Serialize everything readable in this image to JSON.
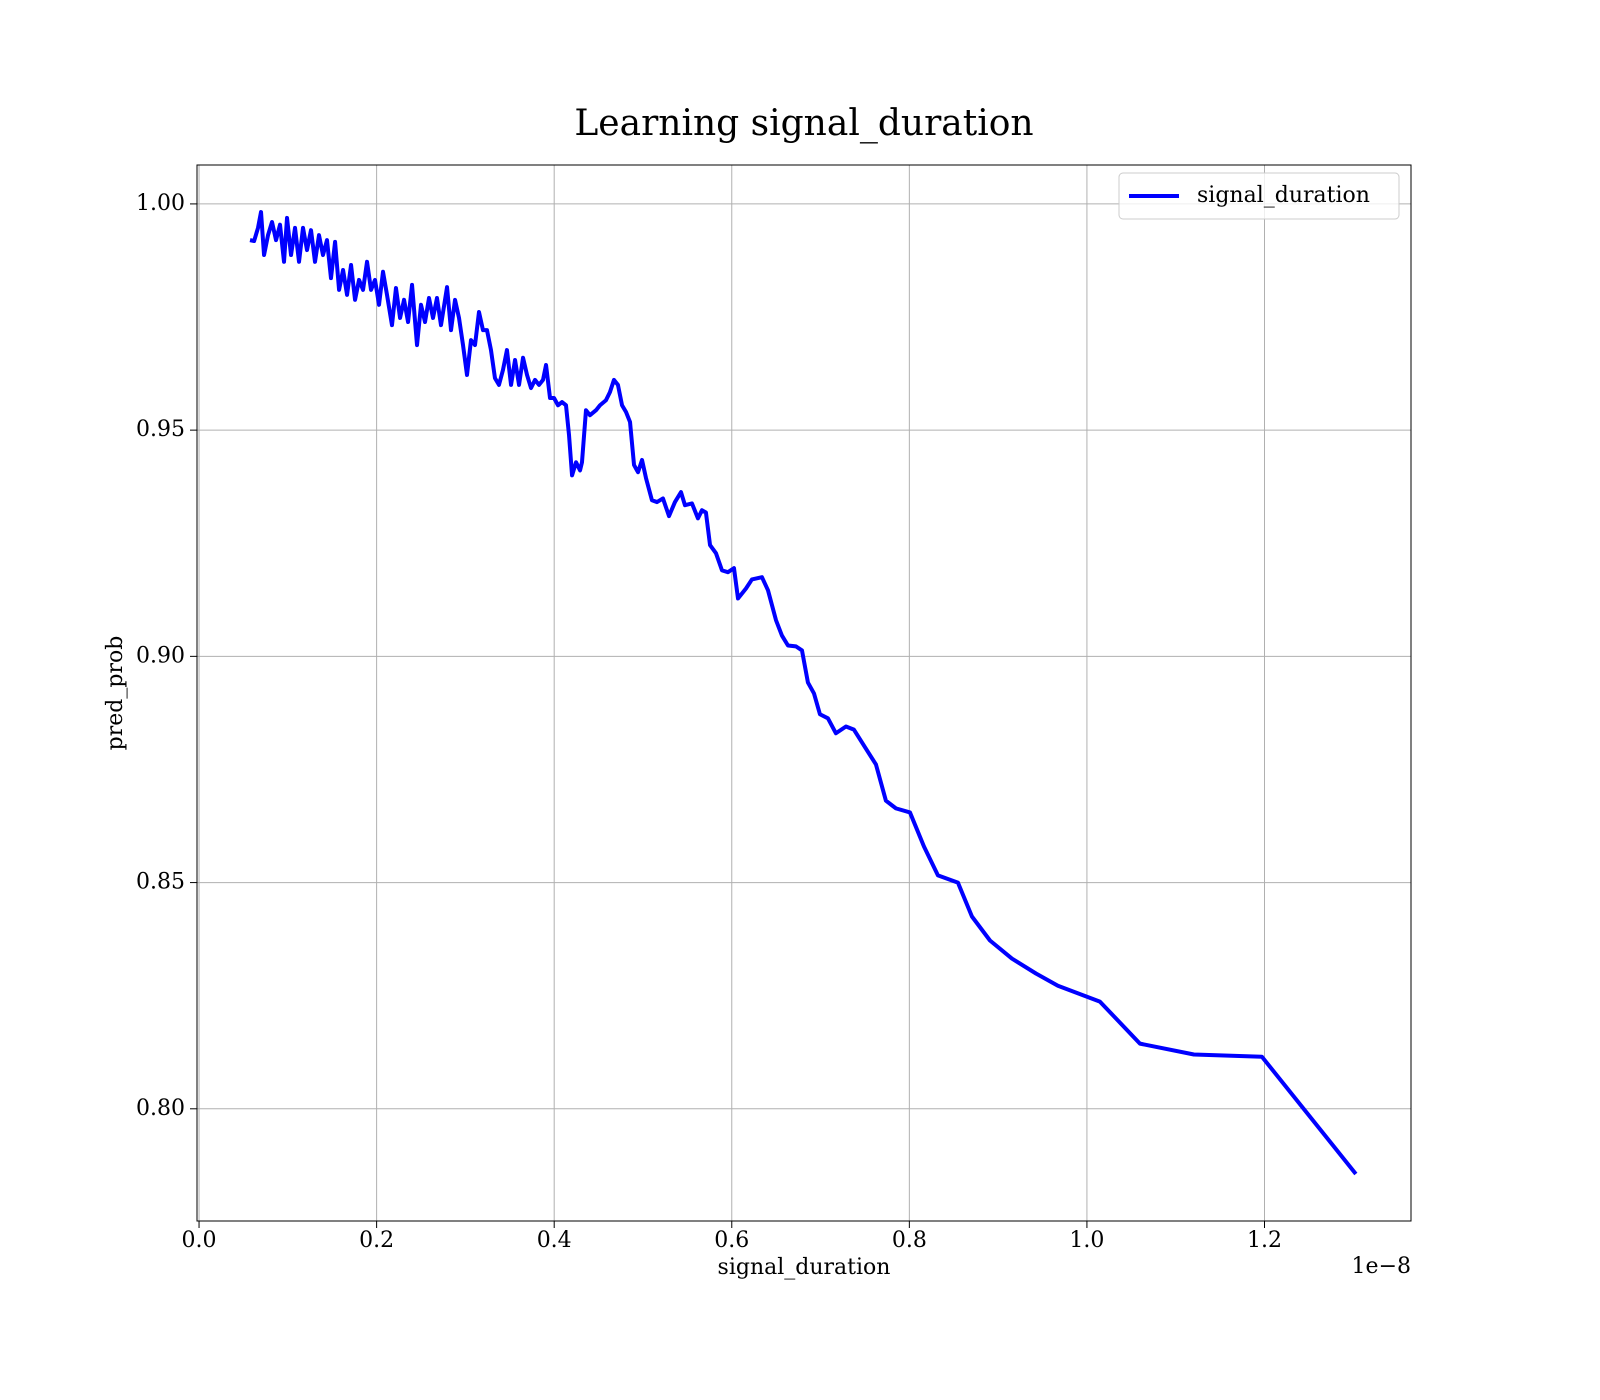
{
  "chart_data": {
    "type": "line",
    "title": "Learning signal_duration",
    "x_label": "signal_duration",
    "y_label": "pred_prob",
    "x_offset_text": "1e−8",
    "x": [
      0.0574,
      0.062,
      0.0664,
      0.0698,
      0.0732,
      0.0777,
      0.0822,
      0.0867,
      0.0912,
      0.0957,
      0.0991,
      0.1036,
      0.1081,
      0.1126,
      0.1171,
      0.1216,
      0.1261,
      0.1306,
      0.1351,
      0.1396,
      0.1441,
      0.1486,
      0.1532,
      0.1577,
      0.1622,
      0.1667,
      0.1712,
      0.1757,
      0.1802,
      0.1847,
      0.1892,
      0.1937,
      0.1982,
      0.2027,
      0.2072,
      0.2117,
      0.2173,
      0.2218,
      0.2264,
      0.2309,
      0.2354,
      0.2399,
      0.2455,
      0.25,
      0.2545,
      0.259,
      0.2635,
      0.268,
      0.2725,
      0.2793,
      0.2838,
      0.2883,
      0.2928,
      0.2973,
      0.3018,
      0.3063,
      0.3108,
      0.3153,
      0.3198,
      0.3243,
      0.3288,
      0.3333,
      0.3378,
      0.3423,
      0.3468,
      0.3514,
      0.3559,
      0.3604,
      0.3649,
      0.3694,
      0.3739,
      0.3784,
      0.3829,
      0.3874,
      0.3908,
      0.3953,
      0.3998,
      0.4043,
      0.4088,
      0.4133,
      0.4167,
      0.4201,
      0.4246,
      0.4291,
      0.4313,
      0.4358,
      0.4403,
      0.4471,
      0.4516,
      0.4583,
      0.4628,
      0.4673,
      0.4718,
      0.4764,
      0.4809,
      0.4854,
      0.4899,
      0.4944,
      0.4989,
      0.5034,
      0.5101,
      0.5158,
      0.5225,
      0.5293,
      0.536,
      0.5428,
      0.5473,
      0.5552,
      0.5619,
      0.5664,
      0.5709,
      0.5755,
      0.5822,
      0.589,
      0.5957,
      0.6025,
      0.607,
      0.616,
      0.6227,
      0.634,
      0.6408,
      0.6498,
      0.6565,
      0.6633,
      0.6723,
      0.6791,
      0.6858,
      0.6926,
      0.6993,
      0.7083,
      0.7173,
      0.7286,
      0.7376,
      0.7511,
      0.7624,
      0.7736,
      0.7849,
      0.8007,
      0.8164,
      0.8322,
      0.8547,
      0.8705,
      0.8908,
      0.9155,
      0.9426,
      0.9673,
      1.0146,
      1.0597,
      1.1205,
      1.1971,
      1.3029
    ],
    "series": [
      {
        "name": "signal_duration",
        "color": "#0000ff",
        "values": [
          0.992,
          0.9918,
          0.9947,
          0.9982,
          0.9887,
          0.9931,
          0.996,
          0.992,
          0.9954,
          0.9872,
          0.9969,
          0.9887,
          0.9947,
          0.9872,
          0.9947,
          0.9898,
          0.9942,
          0.9872,
          0.9931,
          0.9887,
          0.992,
          0.9836,
          0.9916,
          0.981,
          0.9854,
          0.9799,
          0.9865,
          0.9788,
          0.9832,
          0.981,
          0.9872,
          0.981,
          0.9832,
          0.9777,
          0.985,
          0.9799,
          0.9732,
          0.9814,
          0.9748,
          0.9788,
          0.9739,
          0.9821,
          0.9688,
          0.9777,
          0.9739,
          0.9792,
          0.9748,
          0.9792,
          0.9732,
          0.9816,
          0.9721,
          0.9788,
          0.9748,
          0.9688,
          0.9622,
          0.9699,
          0.9688,
          0.9761,
          0.9721,
          0.9721,
          0.9677,
          0.9615,
          0.96,
          0.9633,
          0.9677,
          0.96,
          0.9655,
          0.96,
          0.966,
          0.9622,
          0.9593,
          0.9611,
          0.96,
          0.9611,
          0.9644,
          0.9571,
          0.9571,
          0.9555,
          0.9562,
          0.9555,
          0.9489,
          0.94,
          0.9429,
          0.9411,
          0.9429,
          0.9544,
          0.9533,
          0.9544,
          0.9555,
          0.9566,
          0.9584,
          0.9611,
          0.96,
          0.9555,
          0.954,
          0.9518,
          0.9423,
          0.9407,
          0.9434,
          0.9394,
          0.9345,
          0.9341,
          0.9349,
          0.931,
          0.9341,
          0.9363,
          0.9334,
          0.9338,
          0.9305,
          0.9323,
          0.9318,
          0.9246,
          0.9228,
          0.919,
          0.9186,
          0.9195,
          0.9128,
          0.915,
          0.917,
          0.9175,
          0.9146,
          0.908,
          0.9046,
          0.9024,
          0.9022,
          0.9013,
          0.8942,
          0.8918,
          0.8872,
          0.8863,
          0.883,
          0.8845,
          0.8838,
          0.8796,
          0.8761,
          0.8681,
          0.8664,
          0.8655,
          0.858,
          0.8516,
          0.85,
          0.8425,
          0.8372,
          0.8332,
          0.8299,
          0.8272,
          0.8237,
          0.8144,
          0.812,
          0.8115,
          0.7856
        ]
      }
    ],
    "xlim": [
      -0.0023,
      1.365
    ],
    "ylim": [
      0.7752,
      1.0086
    ],
    "xticks": [
      {
        "value": 0,
        "label": "0.0"
      },
      0.2,
      0.4,
      0.6,
      0.8,
      {
        "value": 1,
        "label": "1.0"
      },
      1.2
    ],
    "yticks": [
      {
        "value": 0.8,
        "label": "0.80"
      },
      0.85,
      {
        "value": 0.9,
        "label": "0.90"
      },
      0.95,
      {
        "value": 1,
        "label": "1.00"
      }
    ],
    "grid": true,
    "legend": "upper right"
  }
}
